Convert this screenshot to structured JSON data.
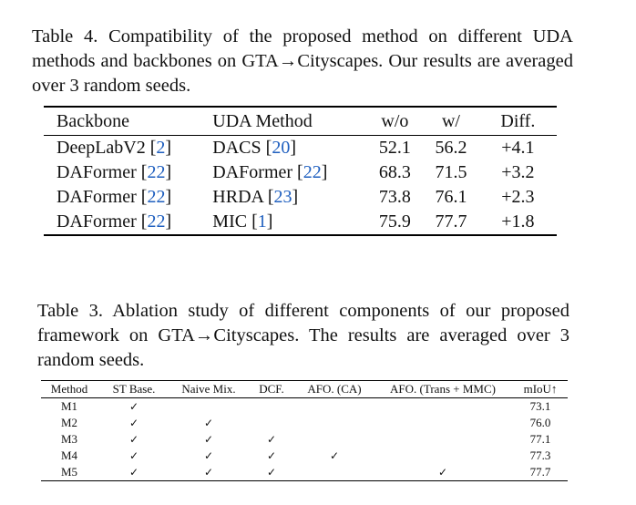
{
  "table4": {
    "caption": "Table 4. Compatibility of the proposed method on different UDA methods and backbones on GTA→Cityscapes.  Our results are averaged over 3 random seeds.",
    "headers": [
      "Backbone",
      "UDA Method",
      "w/o",
      "w/",
      "Diff."
    ],
    "rows": [
      {
        "backbone": "DeepLabV2",
        "backbone_cite": "2",
        "method": "DACS",
        "method_cite": "20",
        "wo": "52.1",
        "w": "56.2",
        "diff": "+4.1"
      },
      {
        "backbone": "DAFormer",
        "backbone_cite": "22",
        "method": "DAFormer",
        "method_cite": "22",
        "wo": "68.3",
        "w": "71.5",
        "diff": "+3.2"
      },
      {
        "backbone": "DAFormer",
        "backbone_cite": "22",
        "method": "HRDA",
        "method_cite": "23",
        "wo": "73.8",
        "w": "76.1",
        "diff": "+2.3"
      },
      {
        "backbone": "DAFormer",
        "backbone_cite": "22",
        "method": "MIC",
        "method_cite": "1",
        "wo": "75.9",
        "w": "77.7",
        "diff": "+1.8"
      }
    ]
  },
  "table3": {
    "caption": "Table 3. Ablation study of different components of our proposed framework on GTA→Cityscapes. The results are averaged over 3 random seeds.",
    "headers": [
      "Method",
      "ST Base.",
      "Naive Mix.",
      "DCF.",
      "AFO. (CA)",
      "AFO. (Trans + MMC)",
      "mIoU↑"
    ],
    "check_mark": "✓",
    "rows": [
      {
        "method": "M1",
        "st_base": "✓",
        "naive_mix": "",
        "dcf": "",
        "afo_ca": "",
        "afo_trans_mmc": "",
        "miou": "73.1"
      },
      {
        "method": "M2",
        "st_base": "✓",
        "naive_mix": "✓",
        "dcf": "",
        "afo_ca": "",
        "afo_trans_mmc": "",
        "miou": "76.0"
      },
      {
        "method": "M3",
        "st_base": "✓",
        "naive_mix": "✓",
        "dcf": "✓",
        "afo_ca": "",
        "afo_trans_mmc": "",
        "miou": "77.1"
      },
      {
        "method": "M4",
        "st_base": "✓",
        "naive_mix": "✓",
        "dcf": "✓",
        "afo_ca": "✓",
        "afo_trans_mmc": "",
        "miou": "77.3"
      },
      {
        "method": "M5",
        "st_base": "✓",
        "naive_mix": "✓",
        "dcf": "✓",
        "afo_ca": "",
        "afo_trans_mmc": "✓",
        "miou": "77.7"
      }
    ]
  },
  "colors": {
    "citation": "#1f5fbf",
    "text": "#111111"
  }
}
